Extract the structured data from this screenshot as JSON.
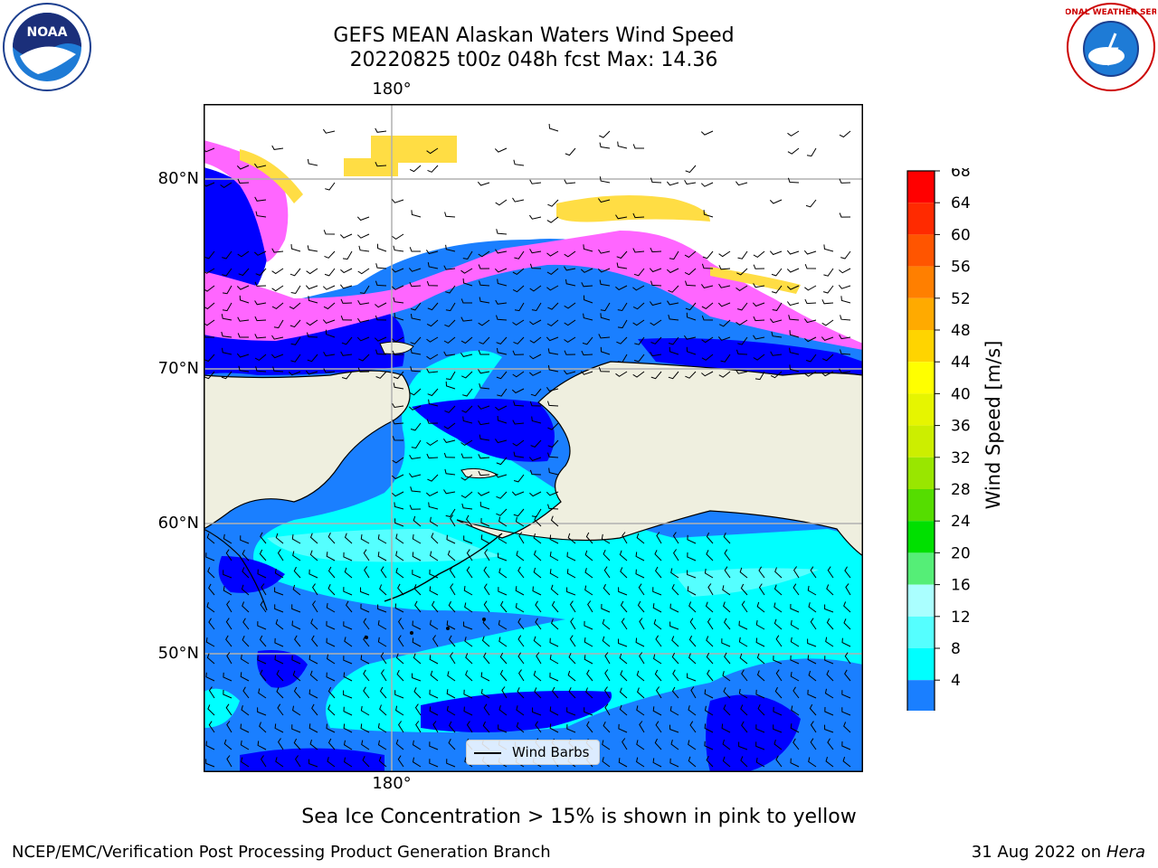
{
  "title": {
    "line1": "GEFS MEAN Alaskan Waters Wind Speed",
    "line2": "20220825 t00z 048h fcst   Max: 14.36"
  },
  "logos": {
    "noaa_text": "NOAA",
    "nws_text": "NATIONAL WEATHER SERVICE"
  },
  "map": {
    "lat_labels": [
      "80°N",
      "70°N",
      "60°N",
      "50°N"
    ],
    "lon_label_top": "180°",
    "lon_label_bottom": "180°",
    "legend_label": "Wind Barbs",
    "colors": {
      "land": "#efefdf",
      "ocean_4_8": "#1a7fff",
      "ocean_lt4": "#0000ff",
      "ocean_8_12": "#00ffff",
      "ocean_12_16": "#55ffff",
      "ice_pink": "#ff66ff",
      "ice_yellow": "#ffdd44",
      "grid": "#b0b0b0"
    }
  },
  "colorbar": {
    "label": "Wind Speed [m/s]",
    "ticks": [
      "68",
      "64",
      "60",
      "56",
      "52",
      "48",
      "44",
      "40",
      "36",
      "32",
      "28",
      "24",
      "20",
      "16",
      "12",
      "8",
      "4"
    ],
    "colors": [
      "#ff0000",
      "#ff2a00",
      "#ff5500",
      "#ff7f00",
      "#ffaa00",
      "#ffd400",
      "#ffff00",
      "#e6f500",
      "#ccee00",
      "#99e600",
      "#55dd00",
      "#00e000",
      "#55ee77",
      "#aaffff",
      "#55ffff",
      "#00ffff",
      "#1a7fff"
    ],
    "under_color": "#0000ff"
  },
  "caption": "Sea Ice Concentration > 15% is shown in pink to yellow",
  "footer": {
    "left": "NCEP/EMC/Verification Post Processing Product Generation Branch",
    "date": "31 Aug 2022 on",
    "host": "Hera"
  }
}
